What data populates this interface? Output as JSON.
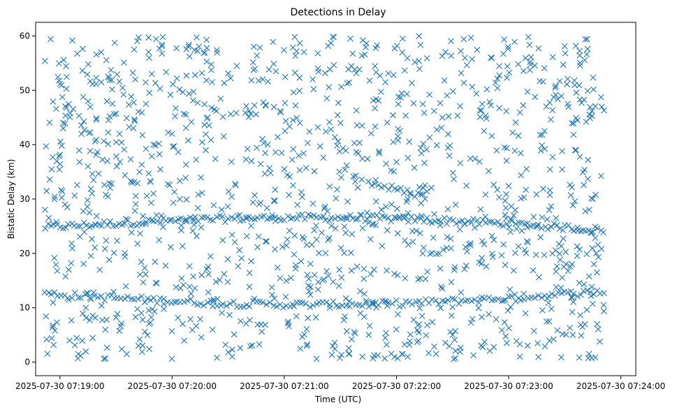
{
  "chart_data": {
    "type": "scatter",
    "title": "Detections in Delay",
    "xlabel": "Time (UTC)",
    "ylabel": "Bistatic Delay (km)",
    "x_unit": "seconds",
    "xlim": [
      "2025-07-30 07:18:47",
      "2025-07-30 07:24:08"
    ],
    "ylim": [
      -2.5,
      62.5
    ],
    "x_ticks": [
      "2025-07-30 07:19:00",
      "2025-07-30 07:20:00",
      "2025-07-30 07:21:00",
      "2025-07-30 07:22:00",
      "2025-07-30 07:23:00",
      "2025-07-30 07:24:00"
    ],
    "y_ticks": [
      0,
      10,
      20,
      30,
      40,
      50,
      60
    ],
    "marker": "x",
    "color": "#1f77b4",
    "grid": false,
    "series": [
      {
        "name": "",
        "tracks": [
          {
            "start": "2025-07-30 07:18:52",
            "end": "2025-07-30 07:23:51",
            "delay_start": 24.8,
            "delay_end": 24.3,
            "shape": "arc",
            "peak": 26.8,
            "points_per_track": 190
          },
          {
            "start": "2025-07-30 07:18:52",
            "end": "2025-07-30 07:23:51",
            "delay_start": 12.6,
            "delay_end": 13.0,
            "shape": "dip",
            "peak": 10.0,
            "points_per_track": 170
          },
          {
            "start": "2025-07-30 07:21:45",
            "end": "2025-07-30 07:22:15",
            "delay_start": 33.0,
            "delay_end": 30.5,
            "shape": "line",
            "points_per_track": 18
          }
        ],
        "points": [
          [
            "2025-07-30 07:18:52",
            55.4
          ],
          [
            "2025-07-30 07:18:55",
            59.4
          ],
          [
            "2025-07-30 07:18:58",
            46.6
          ],
          [
            "2025-07-30 07:19:01",
            39.8
          ],
          [
            "2025-07-30 07:19:04",
            28.5
          ],
          [
            "2025-07-30 07:19:06",
            18.2
          ],
          [
            "2025-07-30 07:19:08",
            3.1
          ],
          [
            "2025-07-30 07:19:12",
            53.6
          ],
          [
            "2025-07-30 07:19:15",
            36.0
          ],
          [
            "2025-07-30 07:19:18",
            12.8
          ],
          [
            "2025-07-30 07:19:22",
            57.0
          ],
          [
            "2025-07-30 07:19:26",
            44.5
          ],
          [
            "2025-07-30 07:19:30",
            8.2
          ],
          [
            "2025-07-30 07:19:34",
            49.2
          ],
          [
            "2025-07-30 07:19:38",
            33.3
          ],
          [
            "2025-07-30 07:19:42",
            3.0
          ],
          [
            "2025-07-30 07:19:46",
            47.5
          ],
          [
            "2025-07-30 07:19:50",
            31.0
          ],
          [
            "2025-07-30 07:19:55",
            59.8
          ],
          [
            "2025-07-30 07:20:00",
            42.0
          ],
          [
            "2025-07-30 07:20:06",
            14.2
          ],
          [
            "2025-07-30 07:20:12",
            57.4
          ],
          [
            "2025-07-30 07:20:18",
            39.0
          ],
          [
            "2025-07-30 07:20:24",
            0.8
          ],
          [
            "2025-07-30 07:20:30",
            53.1
          ],
          [
            "2025-07-30 07:20:36",
            20.6
          ],
          [
            "2025-07-30 07:20:42",
            45.7
          ],
          [
            "2025-07-30 07:20:48",
            5.6
          ],
          [
            "2025-07-30 07:20:54",
            58.9
          ],
          [
            "2025-07-30 07:21:00",
            35.5
          ],
          [
            "2025-07-30 07:21:06",
            47.2
          ],
          [
            "2025-07-30 07:21:12",
            3.0
          ],
          [
            "2025-07-30 07:21:18",
            54.0
          ],
          [
            "2025-07-30 07:21:24",
            22.8
          ],
          [
            "2025-07-30 07:21:30",
            44.0
          ],
          [
            "2025-07-30 07:21:36",
            4.2
          ],
          [
            "2025-07-30 07:21:42",
            59.2
          ],
          [
            "2025-07-30 07:21:48",
            17.0
          ],
          [
            "2025-07-30 07:21:54",
            51.5
          ],
          [
            "2025-07-30 07:22:00",
            36.8
          ],
          [
            "2025-07-30 07:22:06",
            1.0
          ],
          [
            "2025-07-30 07:22:12",
            55.4
          ],
          [
            "2025-07-30 07:22:18",
            19.9
          ],
          [
            "2025-07-30 07:22:24",
            43.1
          ],
          [
            "2025-07-30 07:22:30",
            5.0
          ],
          [
            "2025-07-30 07:22:36",
            59.4
          ],
          [
            "2025-07-30 07:22:42",
            37.4
          ],
          [
            "2025-07-30 07:22:48",
            17.6
          ],
          [
            "2025-07-30 07:22:54",
            50.4
          ],
          [
            "2025-07-30 07:23:00",
            32.4
          ],
          [
            "2025-07-30 07:23:06",
            1.0
          ],
          [
            "2025-07-30 07:23:12",
            56.1
          ],
          [
            "2025-07-30 07:23:18",
            41.8
          ],
          [
            "2025-07-30 07:23:24",
            4.2
          ],
          [
            "2025-07-30 07:23:30",
            58.1
          ],
          [
            "2025-07-30 07:23:36",
            39.0
          ],
          [
            "2025-07-30 07:23:42",
            59.4
          ],
          [
            "2025-07-30 07:23:45",
            30.0
          ],
          [
            "2025-07-30 07:23:48",
            19.3
          ],
          [
            "2025-07-30 07:23:51",
            46.3
          ]
        ],
        "background_clutter_points": 1200,
        "background_delay_range": [
          0.5,
          60
        ]
      }
    ]
  }
}
